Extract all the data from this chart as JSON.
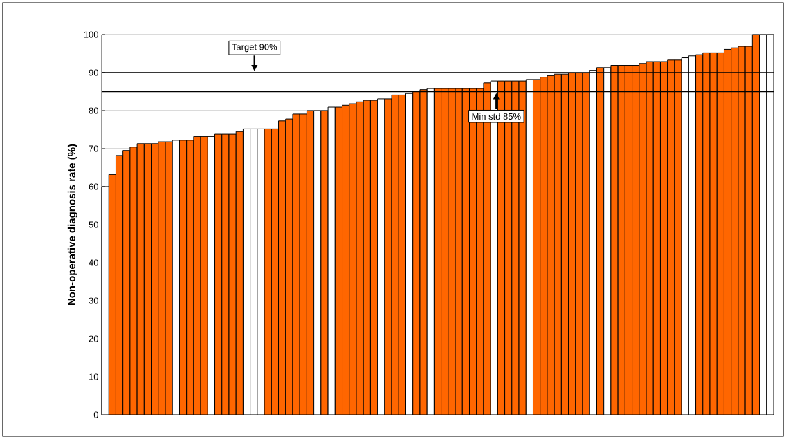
{
  "chart_data": {
    "type": "bar",
    "ylabel": "Non-operative diagnosis rate (%)",
    "categories": [
      null,
      null,
      null,
      null,
      null,
      null,
      null,
      null,
      null,
      null,
      null,
      null,
      null,
      null,
      null,
      null,
      null,
      null,
      null,
      null,
      null,
      null,
      null,
      null,
      null,
      null,
      null,
      null,
      null,
      null,
      null,
      null,
      null,
      null,
      null,
      null,
      null,
      null,
      null,
      null,
      null,
      null,
      null,
      null,
      null,
      null,
      null,
      null,
      null,
      null,
      null,
      null,
      null,
      null,
      null,
      null,
      null,
      null,
      null,
      null,
      null,
      null,
      null,
      null,
      null,
      null,
      null,
      null,
      null,
      null,
      null,
      null,
      null,
      null,
      null,
      null,
      null,
      null,
      null,
      null,
      null,
      null,
      null,
      null,
      null,
      null,
      null,
      null,
      null,
      null,
      null,
      null,
      null,
      null,
      null
    ],
    "values": [
      60.0,
      63.2,
      68.2,
      69.5,
      70.4,
      71.3,
      71.3,
      71.3,
      71.8,
      71.8,
      72.2,
      72.2,
      72.2,
      73.2,
      73.2,
      73.2,
      73.8,
      73.8,
      73.8,
      74.5,
      75.2,
      75.2,
      75.2,
      75.2,
      75.2,
      77.3,
      77.8,
      79.1,
      79.1,
      80.0,
      80.0,
      80.0,
      80.9,
      80.9,
      81.4,
      81.8,
      82.3,
      82.7,
      82.7,
      83.1,
      83.1,
      84.1,
      84.1,
      84.5,
      85.0,
      85.5,
      85.8,
      85.8,
      85.8,
      85.8,
      85.8,
      85.8,
      85.8,
      85.8,
      87.3,
      87.8,
      87.8,
      87.8,
      87.8,
      87.8,
      88.2,
      88.2,
      88.8,
      89.2,
      89.6,
      89.6,
      89.9,
      89.9,
      89.9,
      90.6,
      91.3,
      91.3,
      91.9,
      91.9,
      91.9,
      91.9,
      92.4,
      92.9,
      92.9,
      92.9,
      93.3,
      93.3,
      93.9,
      94.4,
      94.7,
      95.2,
      95.2,
      95.2,
      96.1,
      96.5,
      96.9,
      96.9,
      100.0,
      100.0,
      100.0
    ],
    "colors": [
      "#ffffff",
      "#ff6600",
      "#ff6600",
      "#ff6600",
      "#ff6600",
      "#ff6600",
      "#ff6600",
      "#ff6600",
      "#ff6600",
      "#ff6600",
      "#ffffff",
      "#ff6600",
      "#ff6600",
      "#ff6600",
      "#ff6600",
      "#ffffff",
      "#ff6600",
      "#ff6600",
      "#ff6600",
      "#ff6600",
      "#ffffff",
      "#ffffff",
      "#ffffff",
      "#ff6600",
      "#ff6600",
      "#ff6600",
      "#ff6600",
      "#ff6600",
      "#ff6600",
      "#ff6600",
      "#ffffff",
      "#ff6600",
      "#ffffff",
      "#ff6600",
      "#ff6600",
      "#ff6600",
      "#ff6600",
      "#ff6600",
      "#ff6600",
      "#ffffff",
      "#ff6600",
      "#ff6600",
      "#ff6600",
      "#ffffff",
      "#ff6600",
      "#ff6600",
      "#ffffff",
      "#ff6600",
      "#ff6600",
      "#ff6600",
      "#ff6600",
      "#ff6600",
      "#ff6600",
      "#ff6600",
      "#ff6600",
      "#ffffff",
      "#ff6600",
      "#ff6600",
      "#ff6600",
      "#ff6600",
      "#ffffff",
      "#ff6600",
      "#ff6600",
      "#ff6600",
      "#ff6600",
      "#ff6600",
      "#ff6600",
      "#ff6600",
      "#ff6600",
      "#ffffff",
      "#ff6600",
      "#ffffff",
      "#ff6600",
      "#ff6600",
      "#ff6600",
      "#ff6600",
      "#ff6600",
      "#ff6600",
      "#ff6600",
      "#ff6600",
      "#ff6600",
      "#ff6600",
      "#ffffff",
      "#ffffff",
      "#ff6600",
      "#ff6600",
      "#ff6600",
      "#ff6600",
      "#ff6600",
      "#ff6600",
      "#ff6600",
      "#ff6600",
      "#ff6600",
      "#ffffff",
      "#ffffff"
    ],
    "ylim": [
      0,
      100
    ],
    "yticks": [
      0,
      10,
      20,
      30,
      40,
      50,
      60,
      70,
      80,
      90,
      100
    ],
    "grid": "y",
    "ref_lines": [
      {
        "axis": "y",
        "value": 90,
        "label": "Target 90%"
      },
      {
        "axis": "y",
        "value": 85,
        "label": "Min std 85%"
      }
    ]
  }
}
